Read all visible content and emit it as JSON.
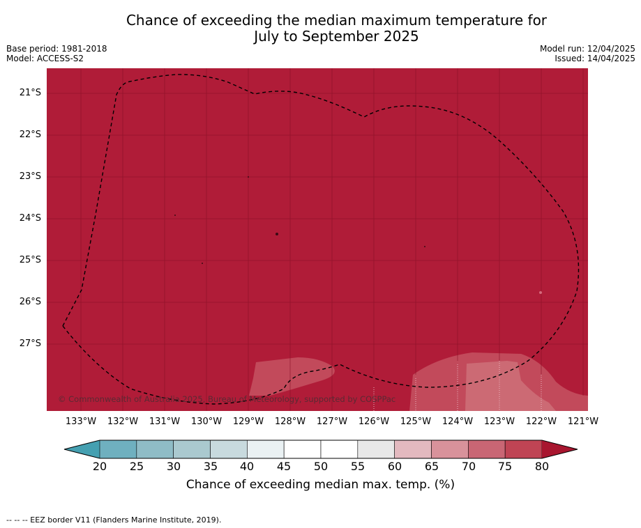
{
  "header": {
    "title_line1": "Chance of exceeding the median maximum temperature for",
    "title_line2": "July to September 2025",
    "base_period": "Base period: 1981-2018",
    "model": "Model: ACCESS-S2",
    "model_run": "Model run: 12/04/2025",
    "issued": "Issued: 14/04/2025"
  },
  "map": {
    "copyright": "© Commonwealth of Australia 2025, Bureau of Meteorology, supported by COSPPac",
    "background_color": "#b01c38",
    "latitude_labels": [
      "21°S",
      "22°S",
      "23°S",
      "24°S",
      "25°S",
      "26°S",
      "27°S"
    ],
    "longitude_labels": [
      "133°W",
      "132°W",
      "131°W",
      "130°W",
      "129°W",
      "128°W",
      "127°W",
      "126°W",
      "125°W",
      "124°W",
      "123°W",
      "122°W",
      "121°W"
    ],
    "dominant_category": "80+",
    "lighter_areas": [
      "75-80",
      "70-75"
    ]
  },
  "colorbar": {
    "ticks": [
      "20",
      "25",
      "30",
      "35",
      "40",
      "45",
      "50",
      "55",
      "60",
      "65",
      "70",
      "75",
      "80"
    ],
    "colors": [
      "#45a0b1",
      "#6fb0bf",
      "#8fbcc6",
      "#aac9cf",
      "#c8dade",
      "#eaf1f3",
      "#ffffff",
      "#ffffff",
      "#e8e8e8",
      "#e3b9bf",
      "#d8929b",
      "#c96674",
      "#bf4454",
      "#a8162f"
    ],
    "label": "Chance of exceeding median max. temp. (%)"
  },
  "footer": {
    "legend": "--  --  -- EEZ border V11 (Flanders Marine Institute, 2019)."
  }
}
